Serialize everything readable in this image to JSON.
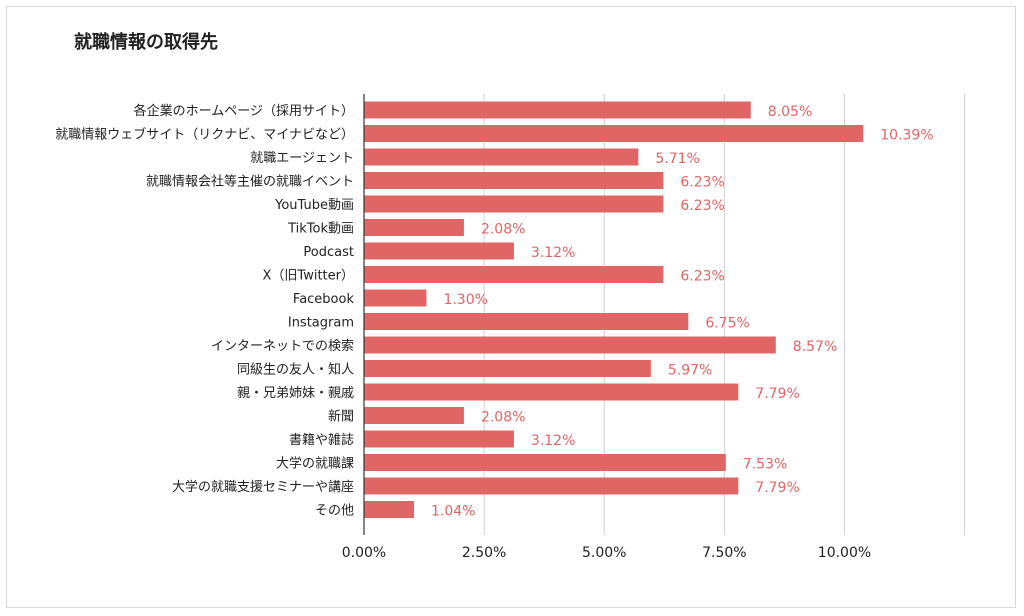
{
  "chart_data": {
    "type": "bar",
    "orientation": "horizontal",
    "title": "就職情報の取得先",
    "xlabel": "",
    "ylabel": "",
    "xlim": [
      0,
      12.5
    ],
    "xticks": [
      "0.00%",
      "2.50%",
      "5.00%",
      "7.50%",
      "10.00%"
    ],
    "grid": true,
    "legend": "none",
    "bar_color": "#e06666",
    "categories": [
      "各企業のホームページ（採用サイト）",
      "就職情報ウェブサイト（リクナビ、マイナビなど）",
      "就職エージェント",
      "就職情報会社等主催の就職イベント",
      "YouTube動画",
      "TikTok動画",
      "Podcast",
      "X（旧Twitter）",
      "Facebook",
      "Instagram",
      "インターネットでの検索",
      "同級生の友人・知人",
      "親・兄弟姉妹・親戚",
      "新聞",
      "書籍や雑誌",
      "大学の就職課",
      "大学の就職支援セミナーや講座",
      "その他"
    ],
    "values": [
      8.05,
      10.39,
      5.71,
      6.23,
      6.23,
      2.08,
      3.12,
      6.23,
      1.3,
      6.75,
      8.57,
      5.97,
      7.79,
      2.08,
      3.12,
      7.53,
      7.79,
      1.04
    ],
    "value_labels": [
      "8.05%",
      "10.39%",
      "5.71%",
      "6.23%",
      "6.23%",
      "2.08%",
      "3.12%",
      "6.23%",
      "1.30%",
      "6.75%",
      "8.57%",
      "5.97%",
      "7.79%",
      "2.08%",
      "3.12%",
      "7.53%",
      "7.79%",
      "1.04%"
    ]
  }
}
